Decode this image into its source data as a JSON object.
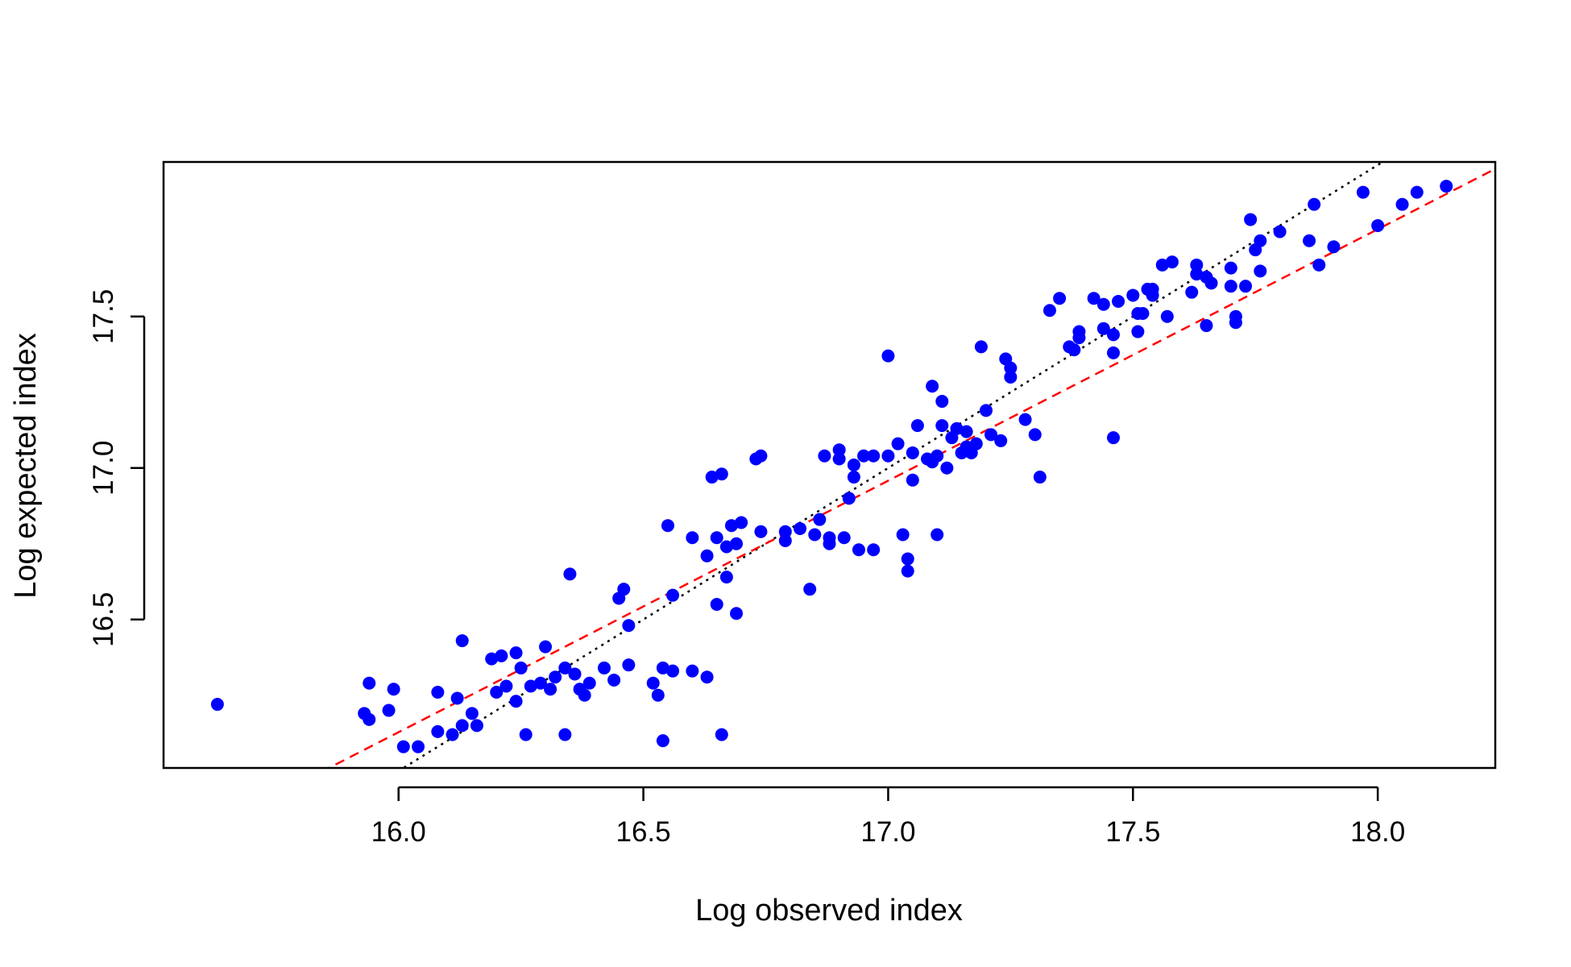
{
  "chart_data": {
    "type": "scatter",
    "title": "",
    "xlabel": "Log observed index",
    "ylabel": "Log expected index",
    "xlim": [
      15.52,
      18.24
    ],
    "ylim": [
      16.01,
      18.01
    ],
    "x_ticks": [
      "16.0",
      "16.5",
      "17.0",
      "17.5",
      "18.0"
    ],
    "y_ticks": [
      "16.5",
      "17.0",
      "17.5"
    ],
    "grid": false,
    "point_color": "#0000ff",
    "reference_lines": [
      {
        "style": "dotted",
        "color": "#000000",
        "slope": 1.0,
        "intercept": 0.0
      },
      {
        "style": "dashed",
        "color": "#ff0000",
        "slope": 0.83,
        "intercept": 2.848
      }
    ],
    "points": [
      [
        15.63,
        16.22
      ],
      [
        15.93,
        16.19
      ],
      [
        15.94,
        16.17
      ],
      [
        15.94,
        16.29
      ],
      [
        15.98,
        16.2
      ],
      [
        15.99,
        16.27
      ],
      [
        16.01,
        16.08
      ],
      [
        16.04,
        16.08
      ],
      [
        16.08,
        16.26
      ],
      [
        16.08,
        16.13
      ],
      [
        16.11,
        16.12
      ],
      [
        16.12,
        16.24
      ],
      [
        16.13,
        16.43
      ],
      [
        16.13,
        16.15
      ],
      [
        16.15,
        16.19
      ],
      [
        16.16,
        16.15
      ],
      [
        16.19,
        16.37
      ],
      [
        16.2,
        16.26
      ],
      [
        16.21,
        16.38
      ],
      [
        16.22,
        16.28
      ],
      [
        16.24,
        16.23
      ],
      [
        16.24,
        16.39
      ],
      [
        16.25,
        16.34
      ],
      [
        16.26,
        16.12
      ],
      [
        16.27,
        16.28
      ],
      [
        16.29,
        16.29
      ],
      [
        16.3,
        16.41
      ],
      [
        16.31,
        16.27
      ],
      [
        16.32,
        16.31
      ],
      [
        16.34,
        16.34
      ],
      [
        16.34,
        16.12
      ],
      [
        16.35,
        16.65
      ],
      [
        16.36,
        16.32
      ],
      [
        16.37,
        16.27
      ],
      [
        16.38,
        16.25
      ],
      [
        16.39,
        16.29
      ],
      [
        16.42,
        16.34
      ],
      [
        16.44,
        16.3
      ],
      [
        16.45,
        16.57
      ],
      [
        16.46,
        16.6
      ],
      [
        16.47,
        16.35
      ],
      [
        16.47,
        16.48
      ],
      [
        16.52,
        16.29
      ],
      [
        16.53,
        16.25
      ],
      [
        16.54,
        16.34
      ],
      [
        16.54,
        16.1
      ],
      [
        16.55,
        16.81
      ],
      [
        16.56,
        16.33
      ],
      [
        16.56,
        16.58
      ],
      [
        16.6,
        16.77
      ],
      [
        16.6,
        16.33
      ],
      [
        16.63,
        16.71
      ],
      [
        16.63,
        16.31
      ],
      [
        16.64,
        16.97
      ],
      [
        16.65,
        16.55
      ],
      [
        16.65,
        16.77
      ],
      [
        16.66,
        16.98
      ],
      [
        16.66,
        16.12
      ],
      [
        16.67,
        16.74
      ],
      [
        16.67,
        16.64
      ],
      [
        16.68,
        16.81
      ],
      [
        16.69,
        16.75
      ],
      [
        16.69,
        16.52
      ],
      [
        16.7,
        16.82
      ],
      [
        16.73,
        17.03
      ],
      [
        16.74,
        17.04
      ],
      [
        16.74,
        16.79
      ],
      [
        16.79,
        16.76
      ],
      [
        16.79,
        16.79
      ],
      [
        16.82,
        16.8
      ],
      [
        16.84,
        16.6
      ],
      [
        16.85,
        16.78
      ],
      [
        16.86,
        16.83
      ],
      [
        16.87,
        17.04
      ],
      [
        16.88,
        16.75
      ],
      [
        16.88,
        16.77
      ],
      [
        16.9,
        17.06
      ],
      [
        16.9,
        17.03
      ],
      [
        16.91,
        16.77
      ],
      [
        16.92,
        16.9
      ],
      [
        16.93,
        16.97
      ],
      [
        16.93,
        17.01
      ],
      [
        16.94,
        16.73
      ],
      [
        16.95,
        17.04
      ],
      [
        16.97,
        17.04
      ],
      [
        16.97,
        16.73
      ],
      [
        17.0,
        17.37
      ],
      [
        17.0,
        17.04
      ],
      [
        17.02,
        17.08
      ],
      [
        17.03,
        16.78
      ],
      [
        17.04,
        16.7
      ],
      [
        17.04,
        16.66
      ],
      [
        17.05,
        16.96
      ],
      [
        17.05,
        17.05
      ],
      [
        17.06,
        17.14
      ],
      [
        17.08,
        17.03
      ],
      [
        17.09,
        17.02
      ],
      [
        17.09,
        17.27
      ],
      [
        17.1,
        17.04
      ],
      [
        17.1,
        16.78
      ],
      [
        17.11,
        17.22
      ],
      [
        17.11,
        17.14
      ],
      [
        17.12,
        17.0
      ],
      [
        17.13,
        17.1
      ],
      [
        17.14,
        17.13
      ],
      [
        17.15,
        17.05
      ],
      [
        17.16,
        17.07
      ],
      [
        17.16,
        17.12
      ],
      [
        17.17,
        17.05
      ],
      [
        17.18,
        17.08
      ],
      [
        17.19,
        17.4
      ],
      [
        17.2,
        17.19
      ],
      [
        17.21,
        17.11
      ],
      [
        17.23,
        17.09
      ],
      [
        17.24,
        17.36
      ],
      [
        17.25,
        17.33
      ],
      [
        17.25,
        17.3
      ],
      [
        17.28,
        17.16
      ],
      [
        17.3,
        17.11
      ],
      [
        17.31,
        16.97
      ],
      [
        17.33,
        17.52
      ],
      [
        17.35,
        17.56
      ],
      [
        17.37,
        17.4
      ],
      [
        17.38,
        17.39
      ],
      [
        17.39,
        17.43
      ],
      [
        17.39,
        17.45
      ],
      [
        17.42,
        17.56
      ],
      [
        17.44,
        17.46
      ],
      [
        17.44,
        17.54
      ],
      [
        17.46,
        17.38
      ],
      [
        17.46,
        17.44
      ],
      [
        17.46,
        17.1
      ],
      [
        17.47,
        17.55
      ],
      [
        17.5,
        17.57
      ],
      [
        17.51,
        17.45
      ],
      [
        17.51,
        17.51
      ],
      [
        17.52,
        17.51
      ],
      [
        17.53,
        17.59
      ],
      [
        17.54,
        17.59
      ],
      [
        17.54,
        17.57
      ],
      [
        17.56,
        17.67
      ],
      [
        17.57,
        17.5
      ],
      [
        17.58,
        17.68
      ],
      [
        17.62,
        17.58
      ],
      [
        17.63,
        17.67
      ],
      [
        17.63,
        17.64
      ],
      [
        17.65,
        17.63
      ],
      [
        17.65,
        17.47
      ],
      [
        17.66,
        17.61
      ],
      [
        17.7,
        17.66
      ],
      [
        17.7,
        17.6
      ],
      [
        17.71,
        17.48
      ],
      [
        17.71,
        17.5
      ],
      [
        17.73,
        17.6
      ],
      [
        17.74,
        17.82
      ],
      [
        17.75,
        17.72
      ],
      [
        17.76,
        17.65
      ],
      [
        17.76,
        17.75
      ],
      [
        17.8,
        17.78
      ],
      [
        17.86,
        17.75
      ],
      [
        17.87,
        17.87
      ],
      [
        17.88,
        17.67
      ],
      [
        17.91,
        17.73
      ],
      [
        17.97,
        17.91
      ],
      [
        18.0,
        17.8
      ],
      [
        18.05,
        17.87
      ],
      [
        18.08,
        17.91
      ],
      [
        18.14,
        17.93
      ]
    ]
  }
}
